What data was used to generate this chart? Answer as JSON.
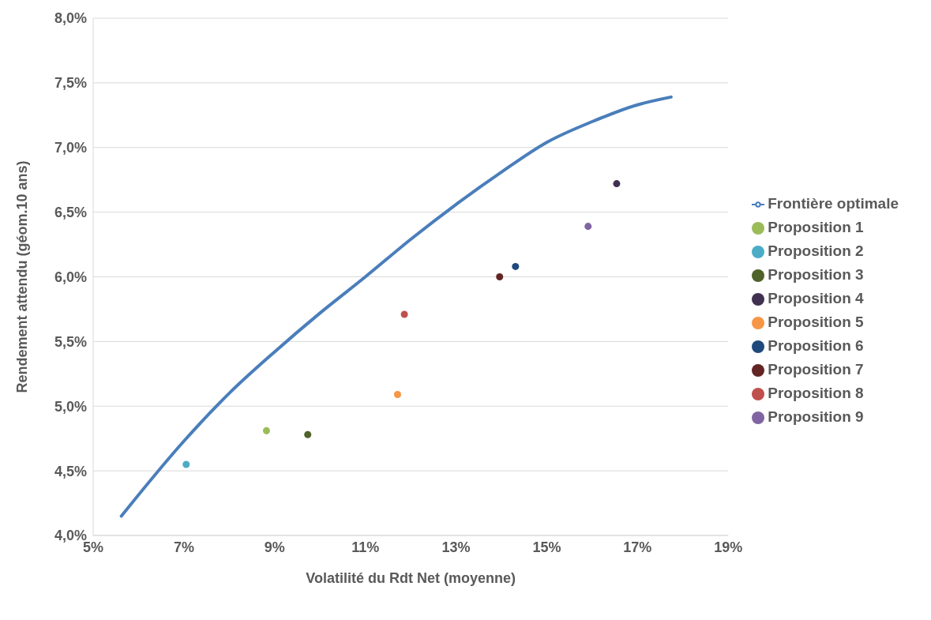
{
  "chart_data": {
    "type": "scatter",
    "xlabel": "Volatilité du Rdt Net (moyenne)",
    "ylabel": "Rendement attendu (géom.10 ans)",
    "xlim": [
      5,
      19
    ],
    "xticks": [
      {
        "value": 5,
        "label": "5%"
      },
      {
        "value": 7,
        "label": "7%"
      },
      {
        "value": 9,
        "label": "9%"
      },
      {
        "value": 11,
        "label": "11%"
      },
      {
        "value": 13,
        "label": "13%"
      },
      {
        "value": 15,
        "label": "15%"
      },
      {
        "value": 17,
        "label": "17%"
      },
      {
        "value": 19,
        "label": "19%"
      }
    ],
    "ylim": [
      4,
      8
    ],
    "yticks": [
      {
        "value": 4,
        "label": "4,0%"
      },
      {
        "value": 4.5,
        "label": "4,5%"
      },
      {
        "value": 5,
        "label": "5,0%"
      },
      {
        "value": 5.5,
        "label": "5,5%"
      },
      {
        "value": 6,
        "label": "6,0%"
      },
      {
        "value": 6.5,
        "label": "6,5%"
      },
      {
        "value": 7,
        "label": "7,0%"
      },
      {
        "value": 7.5,
        "label": "7,5%"
      },
      {
        "value": 8,
        "label": "8,0%"
      }
    ],
    "grid": "y",
    "legend": "right",
    "marker": "circle",
    "series": [
      {
        "name": "Frontière optimale",
        "type": "line",
        "color": "#4a7ebb",
        "marker": "none",
        "x": [
          5.62,
          7,
          8,
          9,
          10,
          11,
          12,
          13,
          14,
          15,
          16,
          17,
          17.74
        ],
        "values": [
          4.15,
          4.73,
          5.1,
          5.42,
          5.72,
          6.0,
          6.29,
          6.56,
          6.81,
          7.04,
          7.2,
          7.33,
          7.39
        ]
      },
      {
        "name": "Proposition 1",
        "color": "#9bbb59",
        "x": [
          8.82
        ],
        "values": [
          4.81
        ]
      },
      {
        "name": "Proposition 2",
        "color": "#4bacc6",
        "x": [
          7.05
        ],
        "values": [
          4.55
        ]
      },
      {
        "name": "Proposition 3",
        "color": "#4f6228",
        "x": [
          9.73
        ],
        "values": [
          4.78
        ]
      },
      {
        "name": "Proposition 4",
        "color": "#403152",
        "x": [
          16.54
        ],
        "values": [
          6.72
        ]
      },
      {
        "name": "Proposition 5",
        "color": "#f79646",
        "x": [
          11.71
        ],
        "values": [
          5.09
        ]
      },
      {
        "name": "Proposition 6",
        "color": "#1f497d",
        "x": [
          14.31
        ],
        "values": [
          6.08
        ]
      },
      {
        "name": "Proposition 7",
        "color": "#632523",
        "x": [
          13.96
        ],
        "values": [
          6.0
        ]
      },
      {
        "name": "Proposition 8",
        "color": "#c0504d",
        "x": [
          11.86
        ],
        "values": [
          5.71
        ]
      },
      {
        "name": "Proposition 9",
        "color": "#8064a2",
        "x": [
          15.91
        ],
        "values": [
          6.39
        ]
      }
    ]
  }
}
